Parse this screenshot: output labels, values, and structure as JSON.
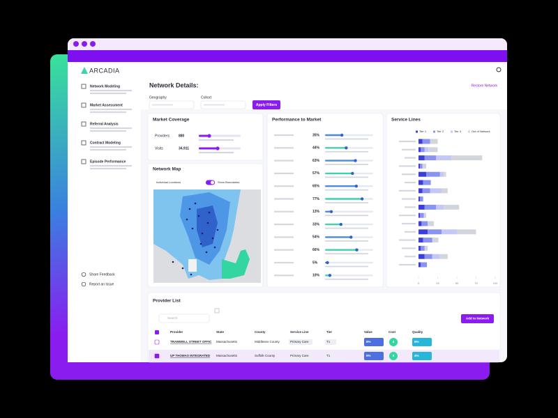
{
  "sidebar": {
    "logo": "ARCADIA",
    "nav": [
      "Network Modeling",
      "Market Assessment",
      "Referral Analysis",
      "Contract Modeling",
      "Episode Performance"
    ],
    "footer": [
      "Share Feedback",
      "Report an Issue"
    ]
  },
  "header": {
    "title": "Network Details:",
    "link": "Restore Network",
    "filters": [
      "Geography",
      "Cohort"
    ],
    "button": "Apply Filters"
  },
  "market_coverage": {
    "title": "Market Coverage",
    "rows": [
      {
        "label": "Providers",
        "value": "880",
        "percent": 25
      },
      {
        "label": "Visits",
        "value": "34,911",
        "percent": 45
      }
    ]
  },
  "network_map": {
    "title": "Network Map",
    "toggle_left": "Individual Locations",
    "toggle_right": "Show Boundaries"
  },
  "performance": {
    "title": "Performance to Market",
    "values": [
      35,
      44,
      63,
      57,
      65,
      77,
      13,
      33,
      54,
      66,
      5,
      10
    ],
    "value_labels": [
      "35%",
      "44%",
      "63%",
      "57%",
      "65%",
      "77%",
      "13%",
      "33%",
      "54%",
      "66%",
      "5%",
      "10%"
    ]
  },
  "service_lines": {
    "type": "bar",
    "title": "Service Lines",
    "categories": [
      null,
      null,
      null,
      null,
      null,
      null,
      null,
      null,
      null,
      null,
      null,
      null,
      null,
      null,
      null,
      null
    ],
    "series": [
      {
        "name": "Tier 1",
        "color": "#3b3fd8",
        "values": [
          5,
          3,
          8,
          2,
          10,
          6,
          5,
          2,
          8,
          2,
          4,
          12,
          6,
          3,
          8,
          3
        ]
      },
      {
        "name": "Tier 2",
        "color": "#8a93f2",
        "values": [
          10,
          5,
          15,
          3,
          18,
          10,
          10,
          4,
          15,
          5,
          8,
          18,
          12,
          5,
          10,
          8
        ]
      },
      {
        "name": "Tier 3",
        "color": "#c3c8f7",
        "values": [
          0,
          5,
          20,
          0,
          5,
          0,
          15,
          0,
          10,
          0,
          0,
          20,
          0,
          0,
          10,
          0
        ]
      },
      {
        "name": "Out of Network",
        "color": "#d3d5dc",
        "values": [
          10,
          12,
          40,
          5,
          3,
          0,
          8,
          0,
          20,
          3,
          8,
          25,
          8,
          4,
          10,
          0
        ]
      }
    ],
    "xlim": [
      0,
      100
    ],
    "xticks": [
      0,
      25,
      50,
      75,
      100
    ]
  },
  "provider_list": {
    "title": "Provider List",
    "search": "Search",
    "button": "Add to Network",
    "columns": [
      "Provider",
      "State",
      "County",
      "Service Line",
      "Tier",
      "Value",
      "Cost",
      "Quality"
    ],
    "rows": [
      [
        "TRAMWELL STREET OFFIC",
        "Massachusetts",
        "Middlesex County",
        "Primary Care",
        "T1",
        "8%",
        "4",
        "5%"
      ],
      [
        "UP THOMAS INTEGRATED",
        "Massachusetts",
        "Suffolk County",
        "Primary Care",
        "T1",
        "6%",
        "3",
        "4%"
      ]
    ]
  }
}
